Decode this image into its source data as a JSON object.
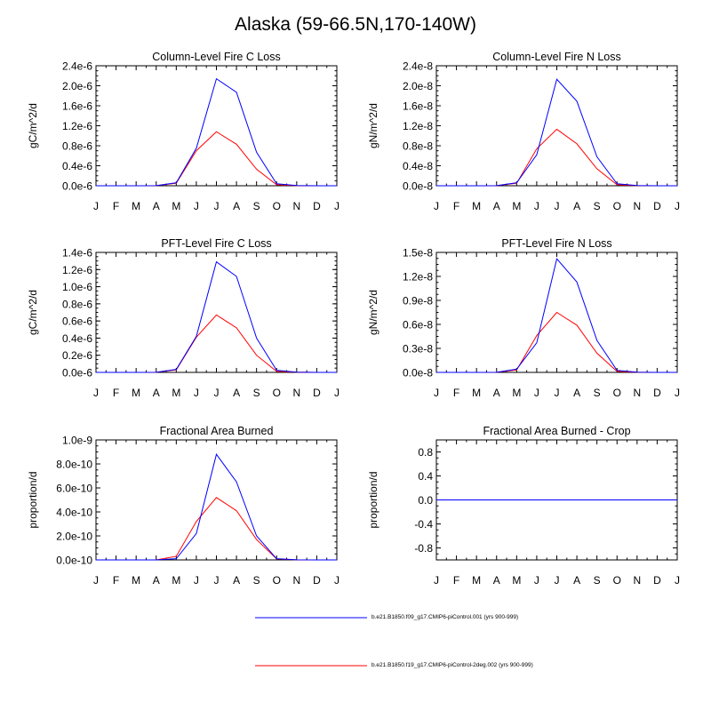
{
  "figure": {
    "title": "Alaska (59-66.5N,170-140W)"
  },
  "chart_data": [
    {
      "type": "line",
      "title": "Column-Level Fire C Loss",
      "ylabel": "gC/m^2/d",
      "xlabel": "",
      "x": [
        "J",
        "F",
        "M",
        "A",
        "M",
        "J",
        "J",
        "A",
        "S",
        "O",
        "N",
        "D",
        "J"
      ],
      "ylim": [
        0,
        2.4e-06
      ],
      "yticks": [
        0,
        4e-07,
        8e-07,
        1.2e-06,
        1.6e-06,
        2e-06,
        2.4e-06
      ],
      "ytick_labels": [
        "0.0e-6",
        "0.4e-6",
        "0.8e-6",
        "1.2e-6",
        "1.6e-6",
        "2.0e-6",
        "2.4e-6"
      ],
      "series": [
        {
          "name": "b.e21.B1850.f09_g17.CMIP6-piControl.001 (yrs 900-999)",
          "color": "#0000ff",
          "values": [
            0,
            0,
            0,
            2e-09,
            6e-08,
            7.5e-07,
            2.14e-06,
            1.87e-06,
            6.7e-07,
            4e-08,
            5e-09,
            0,
            0
          ]
        },
        {
          "name": "b.e21.B1850.f19_g17.CMIP6-piControl-2deg.002 (yrs 900-999)",
          "color": "#ff0000",
          "values": [
            0,
            0,
            0,
            2e-09,
            5e-08,
            7e-07,
            1.08e-06,
            8.3e-07,
            3.3e-07,
            2e-08,
            3e-09,
            0,
            0
          ]
        }
      ]
    },
    {
      "type": "line",
      "title": "Column-Level Fire N Loss",
      "ylabel": "gN/m^2/d",
      "xlabel": "",
      "x": [
        "J",
        "F",
        "M",
        "A",
        "M",
        "J",
        "J",
        "A",
        "S",
        "O",
        "N",
        "D",
        "J"
      ],
      "ylim": [
        0,
        2.4e-08
      ],
      "yticks": [
        0,
        4e-09,
        8e-09,
        1.2e-08,
        1.6e-08,
        2e-08,
        2.4e-08
      ],
      "ytick_labels": [
        "0.0e-8",
        "0.4e-8",
        "0.8e-8",
        "1.2e-8",
        "1.6e-8",
        "2.0e-8",
        "2.4e-8"
      ],
      "series": [
        {
          "name": "b.e21.B1850.f09_g17.CMIP6-piControl.001 (yrs 900-999)",
          "color": "#0000ff",
          "values": [
            0,
            0,
            0,
            2e-11,
            6e-10,
            6.2e-09,
            2.13e-08,
            1.69e-08,
            5.8e-09,
            4e-10,
            5e-11,
            0,
            0
          ]
        },
        {
          "name": "b.e21.B1850.f19_g17.CMIP6-piControl-2deg.002 (yrs 900-999)",
          "color": "#ff0000",
          "values": [
            0,
            0,
            0,
            2e-11,
            5e-10,
            7.4e-09,
            1.13e-08,
            8.4e-09,
            3.4e-09,
            2e-10,
            3e-11,
            0,
            0
          ]
        }
      ]
    },
    {
      "type": "line",
      "title": "PFT-Level Fire C Loss",
      "ylabel": "gC/m^2/d",
      "xlabel": "",
      "x": [
        "J",
        "F",
        "M",
        "A",
        "M",
        "J",
        "J",
        "A",
        "S",
        "O",
        "N",
        "D",
        "J"
      ],
      "ylim": [
        0,
        1.4e-06
      ],
      "yticks": [
        0,
        2e-07,
        4e-07,
        6e-07,
        8e-07,
        1e-06,
        1.2e-06,
        1.4e-06
      ],
      "ytick_labels": [
        "0.0e-6",
        "0.2e-6",
        "0.4e-6",
        "0.6e-6",
        "0.8e-6",
        "1.0e-6",
        "1.2e-6",
        "1.4e-6"
      ],
      "series": [
        {
          "name": "b.e21.B1850.f09_g17.CMIP6-piControl.001 (yrs 900-999)",
          "color": "#0000ff",
          "values": [
            0,
            0,
            0,
            1e-09,
            3.5e-08,
            4.2e-07,
            1.29e-06,
            1.12e-06,
            4e-07,
            2.5e-08,
            3e-09,
            0,
            0
          ]
        },
        {
          "name": "b.e21.B1850.f19_g17.CMIP6-piControl-2deg.002 (yrs 900-999)",
          "color": "#ff0000",
          "values": [
            0,
            0,
            0,
            1e-09,
            3e-08,
            4.1e-07,
            6.7e-07,
            5.2e-07,
            2e-07,
            1.2e-08,
            2e-09,
            0,
            0
          ]
        }
      ]
    },
    {
      "type": "line",
      "title": "PFT-Level Fire N Loss",
      "ylabel": "gN/m^2/d",
      "xlabel": "",
      "x": [
        "J",
        "F",
        "M",
        "A",
        "M",
        "J",
        "J",
        "A",
        "S",
        "O",
        "N",
        "D",
        "J"
      ],
      "ylim": [
        0,
        1.5e-08
      ],
      "yticks": [
        0,
        3e-09,
        6e-09,
        9e-09,
        1.2e-08,
        1.5e-08
      ],
      "ytick_labels": [
        "0.0e-8",
        "0.3e-8",
        "0.6e-8",
        "0.9e-8",
        "1.2e-8",
        "1.5e-8"
      ],
      "series": [
        {
          "name": "b.e21.B1850.f09_g17.CMIP6-piControl.001 (yrs 900-999)",
          "color": "#0000ff",
          "values": [
            0,
            0,
            0,
            1e-11,
            4e-10,
            3.7e-09,
            1.42e-08,
            1.13e-08,
            4e-09,
            2.5e-10,
            3e-11,
            0,
            0
          ]
        },
        {
          "name": "b.e21.B1850.f19_g17.CMIP6-piControl-2deg.002 (yrs 900-999)",
          "color": "#ff0000",
          "values": [
            0,
            0,
            0,
            1e-11,
            3e-10,
            4.6e-09,
            7.5e-09,
            5.9e-09,
            2.4e-09,
            1.3e-10,
            2e-11,
            0,
            0
          ]
        }
      ]
    },
    {
      "type": "line",
      "title": "Fractional Area Burned",
      "ylabel": "proportion/d",
      "xlabel": "",
      "x": [
        "J",
        "F",
        "M",
        "A",
        "M",
        "J",
        "J",
        "A",
        "S",
        "O",
        "N",
        "D",
        "J"
      ],
      "ylim": [
        0,
        1e-09
      ],
      "yticks": [
        0,
        2e-10,
        4e-10,
        6e-10,
        8e-10,
        1e-09
      ],
      "ytick_labels": [
        "0.0e-10",
        "2.0e-10",
        "4.0e-10",
        "6.0e-10",
        "8.0e-10",
        "1.0e-9"
      ],
      "series": [
        {
          "name": "b.e21.B1850.f09_g17.CMIP6-piControl.001 (yrs 900-999)",
          "color": "#0000ff",
          "values": [
            0,
            0,
            0,
            0,
            1e-11,
            2.2e-10,
            8.8e-10,
            6.5e-10,
            2e-10,
            1e-11,
            1e-12,
            0,
            0
          ]
        },
        {
          "name": "b.e21.B1850.f19_g17.CMIP6-piControl-2deg.002 (yrs 900-999)",
          "color": "#ff0000",
          "values": [
            0,
            0,
            0,
            0,
            3e-11,
            3.2e-10,
            5.2e-10,
            4.1e-10,
            1.7e-10,
            8e-12,
            1e-12,
            0,
            0
          ]
        }
      ]
    },
    {
      "type": "line",
      "title": "Fractional Area Burned - Crop",
      "ylabel": "proportion/d",
      "xlabel": "",
      "x": [
        "J",
        "F",
        "M",
        "A",
        "M",
        "J",
        "J",
        "A",
        "S",
        "O",
        "N",
        "D",
        "J"
      ],
      "ylim": [
        -1.0,
        1.0
      ],
      "yticks": [
        -0.8,
        -0.4,
        0.0,
        0.4,
        0.8
      ],
      "ytick_labels": [
        "-0.8",
        "-0.4",
        "0.0",
        "0.4",
        "0.8"
      ],
      "series": [
        {
          "name": "b.e21.B1850.f09_g17.CMIP6-piControl.001 (yrs 900-999)",
          "color": "#0000ff",
          "values": [
            0,
            0,
            0,
            0,
            0,
            0,
            0,
            0,
            0,
            0,
            0,
            0,
            0
          ]
        },
        {
          "name": "b.e21.B1850.f19_g17.CMIP6-piControl-2deg.002 (yrs 900-999)",
          "color": "#ff0000",
          "values": [
            0,
            0,
            0,
            0,
            0,
            0,
            0,
            0,
            0,
            0,
            0,
            0,
            0
          ]
        }
      ]
    }
  ],
  "legend": {
    "placement": "bottom",
    "entries": [
      {
        "label": "b.e21.B1850.f09_g17.CMIP6-piControl.001 (yrs 900-999)",
        "color": "#0000ff"
      },
      {
        "label": "b.e21.B1850.f19_g17.CMIP6-piControl-2deg.002 (yrs 900-999)",
        "color": "#ff0000"
      }
    ]
  }
}
